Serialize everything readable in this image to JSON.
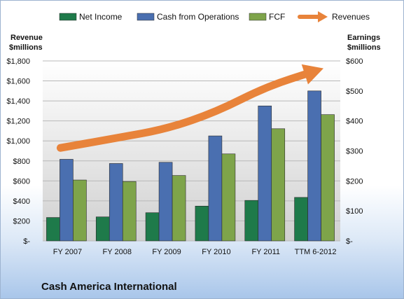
{
  "chart_data": {
    "type": "bar",
    "categories": [
      "FY 2007",
      "FY 2008",
      "FY 2009",
      "FY 2010",
      "FY 2011",
      "TTM 6-2012"
    ],
    "series": [
      {
        "name": "Net Income",
        "axis": "right",
        "values": [
          78,
          80,
          94,
          116,
          135,
          145
        ],
        "color": "#1e7a4a"
      },
      {
        "name": "Cash from Operations",
        "axis": "right",
        "values": [
          272,
          258,
          262,
          350,
          450,
          500
        ],
        "color": "#4a6fb0"
      },
      {
        "name": "FCF",
        "axis": "right",
        "values": [
          203,
          198,
          218,
          290,
          374,
          421
        ],
        "color": "#7ea44a"
      },
      {
        "name": "Revenues",
        "axis": "left",
        "type": "arrow",
        "values": [
          930,
          1030,
          1120,
          1290,
          1540,
          1700
        ],
        "color": "#e8833a"
      }
    ],
    "y_left": {
      "label_line1": "Revenue",
      "label_line2": "$millions",
      "ylim": [
        0,
        1800
      ],
      "ticks": [
        "$-",
        "$200",
        "$400",
        "$600",
        "$800",
        "$1,000",
        "$1,200",
        "$1,400",
        "$1,600",
        "$1,800"
      ]
    },
    "y_right": {
      "label_line1": "Earnings",
      "label_line2": "$millions",
      "ylim": [
        0,
        600
      ],
      "ticks": [
        "$-",
        "$100",
        "$200",
        "$300",
        "$400",
        "$500",
        "$600"
      ]
    },
    "legend_position": "top",
    "grid": true,
    "company": "Cash America International"
  }
}
